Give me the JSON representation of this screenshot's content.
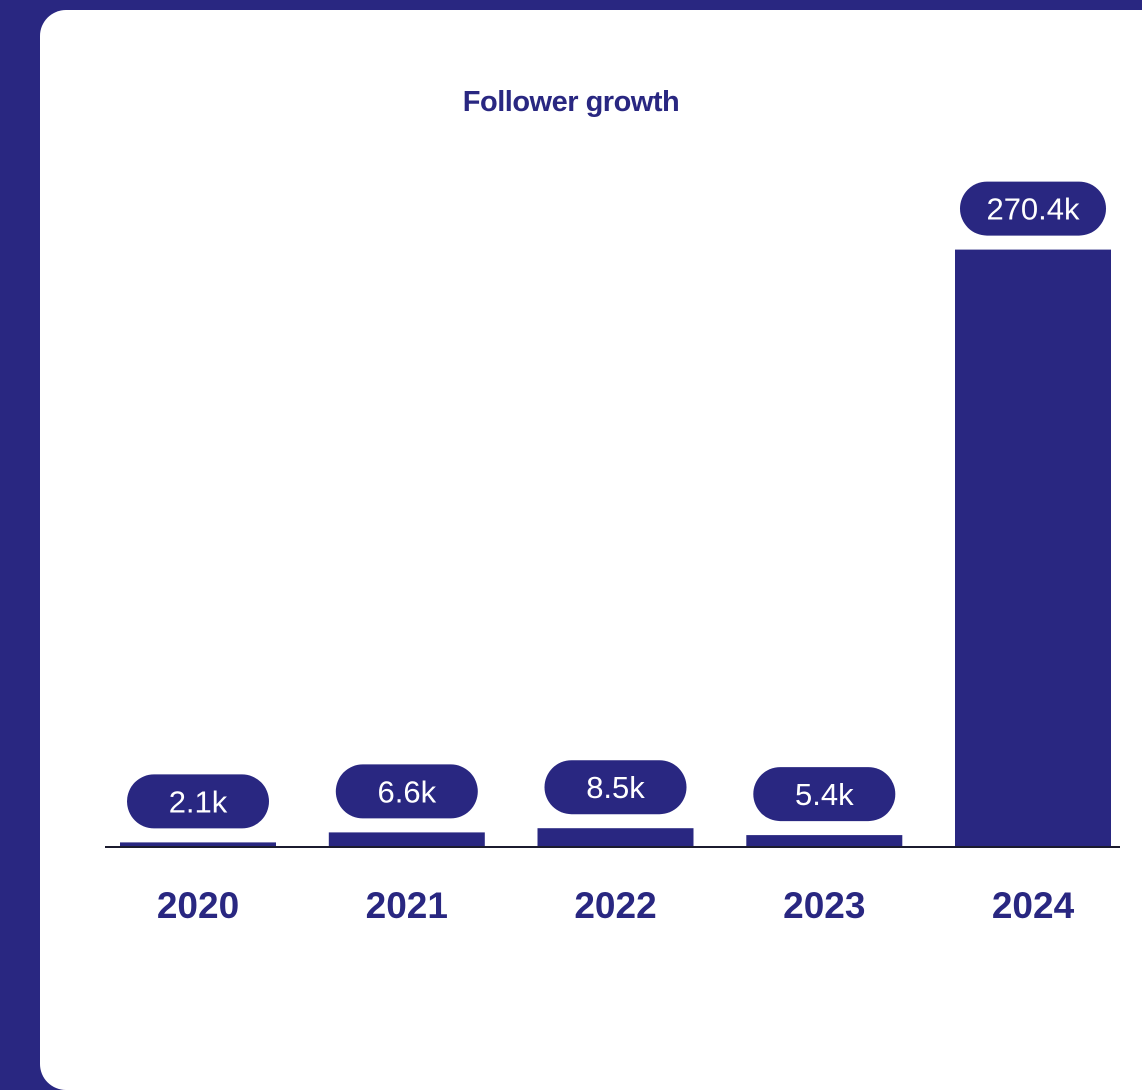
{
  "colors": {
    "background": "#292781",
    "card": "#ffffff",
    "bar": "#292781",
    "label_text": "#ffffff",
    "axis": "#1b1b2e"
  },
  "chart_data": {
    "type": "bar",
    "title": "Follower growth",
    "xlabel": "",
    "ylabel": "",
    "categories": [
      "2020",
      "2021",
      "2022",
      "2023",
      "2024"
    ],
    "values": [
      2.1,
      6.6,
      8.5,
      5.4,
      270.4
    ],
    "value_labels": [
      "2.1k",
      "6.6k",
      "8.5k",
      "5.4k",
      "270.4k"
    ],
    "unit": "k",
    "grid": false,
    "legend": "none"
  }
}
